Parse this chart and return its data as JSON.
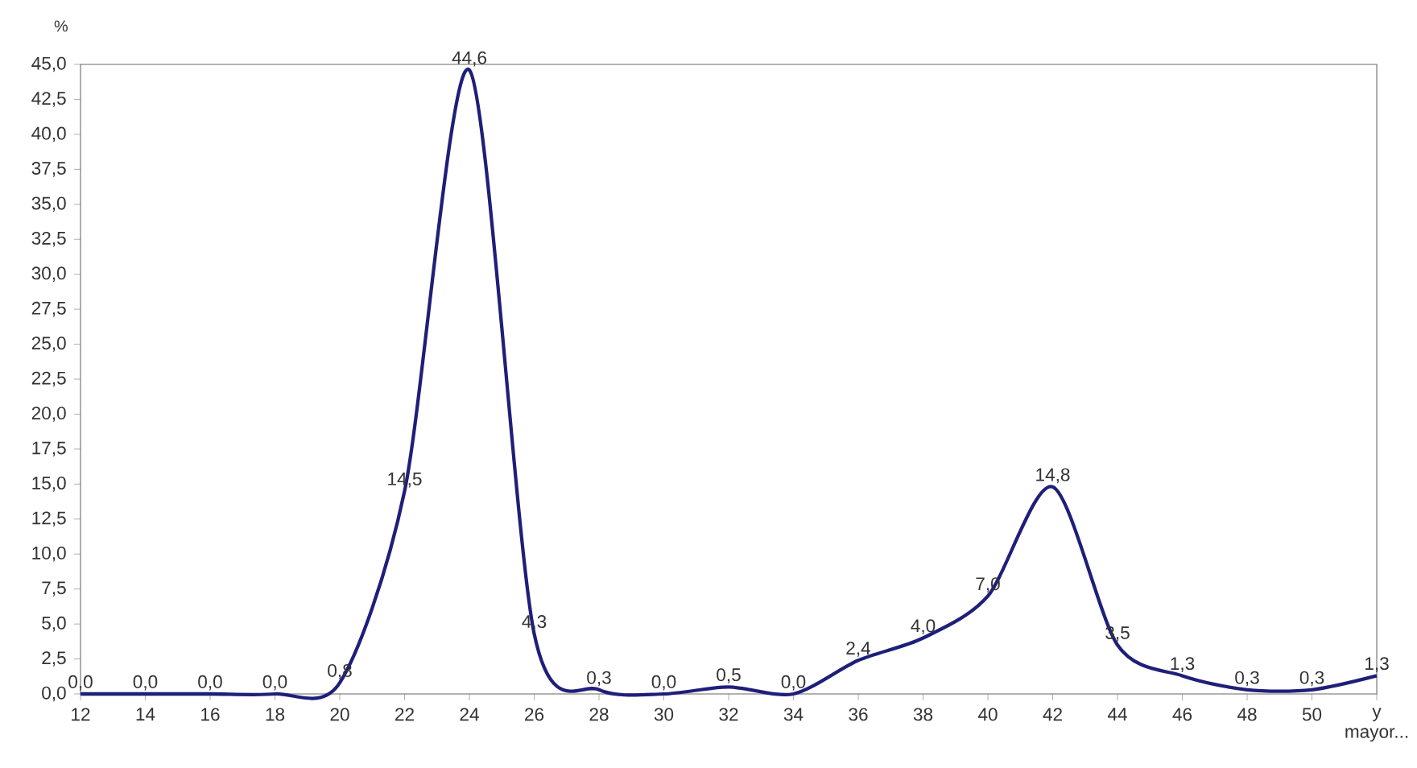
{
  "chart_data": {
    "type": "line",
    "ylabel": "%",
    "categories": [
      "12",
      "14",
      "16",
      "18",
      "20",
      "22",
      "24",
      "26",
      "28",
      "30",
      "32",
      "34",
      "36",
      "38",
      "40",
      "42",
      "44",
      "46",
      "48",
      "50",
      "y mayor..."
    ],
    "values": [
      0.0,
      0.0,
      0.0,
      0.0,
      0.8,
      14.5,
      44.6,
      4.3,
      0.3,
      0.0,
      0.5,
      0.0,
      2.4,
      4.0,
      7.0,
      14.8,
      3.5,
      1.3,
      0.3,
      0.3,
      1.3
    ],
    "value_labels": [
      "0,0",
      "0,0",
      "0,0",
      "0,0",
      "0,8",
      "14,5",
      "44,6",
      "4,3",
      "0,3",
      "0,0",
      "0,5",
      "0,0",
      "2,4",
      "4,0",
      "7,0",
      "14,8",
      "3,5",
      "1,3",
      "0,3",
      "0,3",
      "1,3"
    ],
    "color": "#1f1f7a",
    "ylim": [
      0,
      45
    ],
    "yticks": [
      {
        "value": 0,
        "label": "0,0"
      },
      {
        "value": 2.5,
        "label": "2,5"
      },
      {
        "value": 5,
        "label": "5,0"
      },
      {
        "value": 7.5,
        "label": "7,5"
      },
      {
        "value": 10,
        "label": "10,0"
      },
      {
        "value": 12.5,
        "label": "12,5"
      },
      {
        "value": 15,
        "label": "15,0"
      },
      {
        "value": 17.5,
        "label": "17,5"
      },
      {
        "value": 20,
        "label": "20,0"
      },
      {
        "value": 22.5,
        "label": "22,5"
      },
      {
        "value": 25,
        "label": "25,0"
      },
      {
        "value": 27.5,
        "label": "27,5"
      },
      {
        "value": 30,
        "label": "30,0"
      },
      {
        "value": 32.5,
        "label": "32,5"
      },
      {
        "value": 35,
        "label": "35,0"
      },
      {
        "value": 37.5,
        "label": "37,5"
      },
      {
        "value": 40,
        "label": "40,0"
      },
      {
        "value": 42.5,
        "label": "42,5"
      },
      {
        "value": 45,
        "label": "45,0"
      }
    ]
  }
}
